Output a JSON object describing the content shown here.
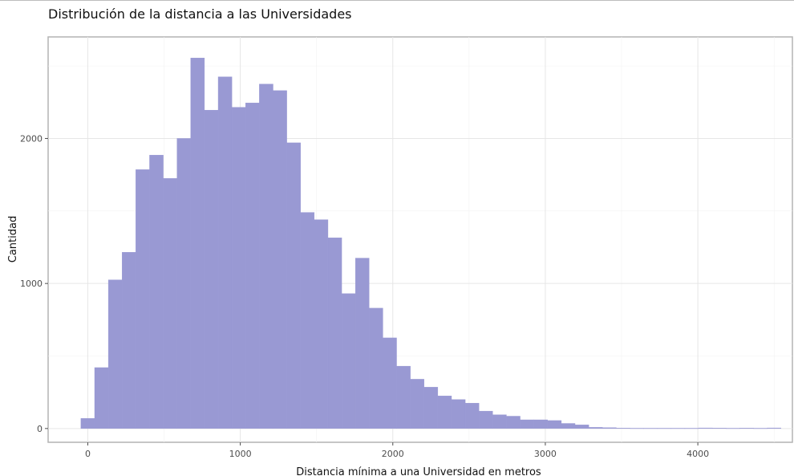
{
  "chart_data": {
    "type": "bar",
    "title": "Distribución de la distancia a las Universidades",
    "xlabel": "Distancia mínima a una Universidad en metros",
    "ylabel": "Cantidad",
    "xlim": [
      -260,
      4620
    ],
    "ylim": [
      -95,
      2700
    ],
    "x_ticks": [
      0,
      1000,
      2000,
      3000,
      4000
    ],
    "x_tick_labels": [
      "0",
      "1000",
      "2000",
      "3000",
      "4000"
    ],
    "y_ticks": [
      0,
      1000,
      2000
    ],
    "y_tick_labels": [
      "0",
      "1000",
      "2000"
    ],
    "grid": true,
    "legend": "none",
    "bar_color": "#9999d3",
    "bin_width": 90,
    "bins_start": -45,
    "counts": [
      70,
      420,
      1025,
      1215,
      1785,
      1885,
      1725,
      2000,
      2555,
      2195,
      2425,
      2215,
      2245,
      2375,
      2330,
      1970,
      1490,
      1440,
      1315,
      930,
      1175,
      830,
      625,
      430,
      340,
      285,
      225,
      200,
      175,
      120,
      95,
      85,
      60,
      60,
      55,
      35,
      25,
      8,
      6,
      3,
      2,
      2,
      2,
      2,
      2,
      4,
      3,
      2,
      3,
      2,
      4
    ]
  }
}
